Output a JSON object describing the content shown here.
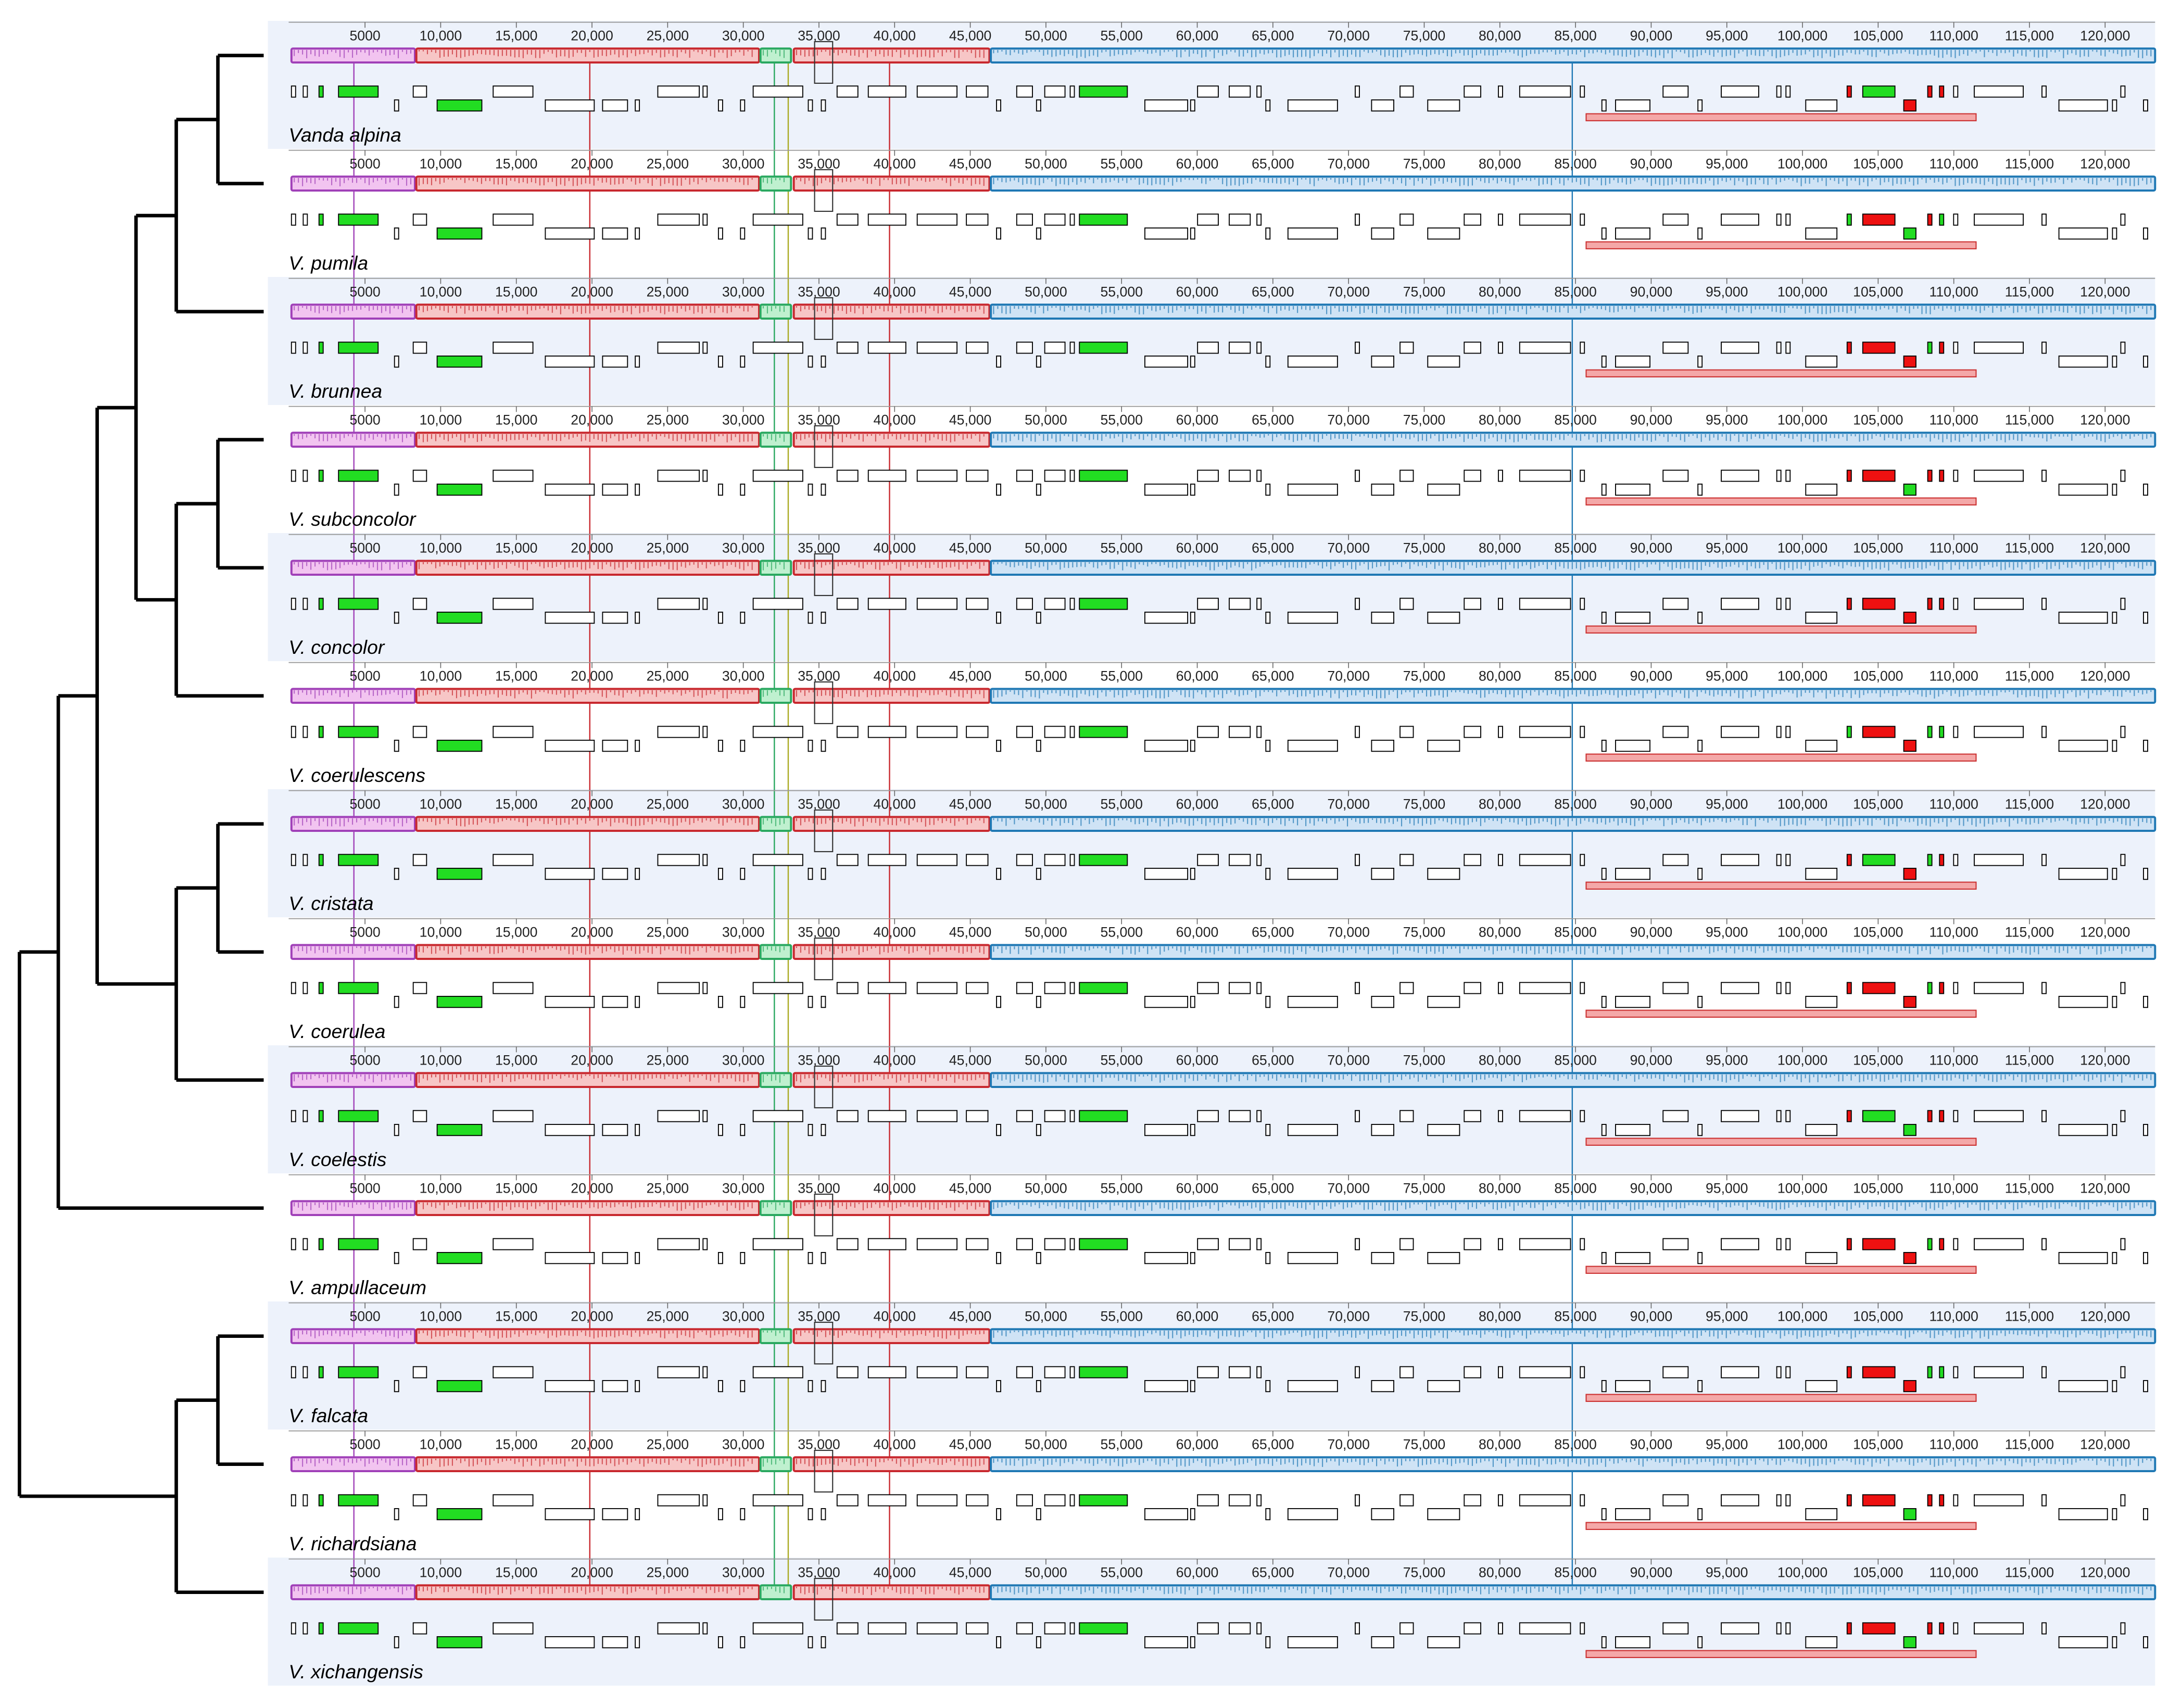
{
  "genomes": [
    {
      "name": "Vanda alpina"
    },
    {
      "name": "V. pumila"
    },
    {
      "name": "V. brunnea"
    },
    {
      "name": "V. subconcolor"
    },
    {
      "name": "V. concolor"
    },
    {
      "name": "V. coerulescens"
    },
    {
      "name": "V. cristata"
    },
    {
      "name": "V. coerulea"
    },
    {
      "name": "V. coelestis"
    },
    {
      "name": "V. ampullaceum"
    },
    {
      "name": "V. falcata"
    },
    {
      "name": "V. richardsiana"
    },
    {
      "name": "V. xichangensis"
    }
  ],
  "axis": {
    "ticks": [
      5000,
      {
        "value": 10000,
        "label": "10,000"
      },
      {
        "value": 15000,
        "label": "15,000"
      },
      {
        "value": 20000,
        "label": "20,000"
      },
      {
        "value": 25000,
        "label": "25,000"
      },
      {
        "value": 30000,
        "label": "30,000"
      },
      {
        "value": 35000,
        "label": "35,000"
      },
      {
        "value": 40000,
        "label": "40,000"
      },
      {
        "value": 45000,
        "label": "45,000"
      },
      {
        "value": 50000,
        "label": "50,000"
      },
      {
        "value": 55000,
        "label": "55,000"
      },
      {
        "value": 60000,
        "label": "60,000"
      },
      {
        "value": 65000,
        "label": "65,000"
      },
      {
        "value": 70000,
        "label": "70,000"
      },
      {
        "value": 75000,
        "label": "75,000"
      },
      {
        "value": 80000,
        "label": "80,000"
      },
      {
        "value": 85000,
        "label": "85,000"
      },
      {
        "value": 90000,
        "label": "90,000"
      },
      {
        "value": 95000,
        "label": "95,000"
      },
      {
        "value": 100000,
        "label": "100,000"
      },
      {
        "value": 105000,
        "label": "105,000"
      },
      {
        "value": 110000,
        "label": "110,000"
      },
      {
        "value": 115000,
        "label": "115,000"
      },
      {
        "value": 120000,
        "label": "120,000"
      }
    ]
  }
}
